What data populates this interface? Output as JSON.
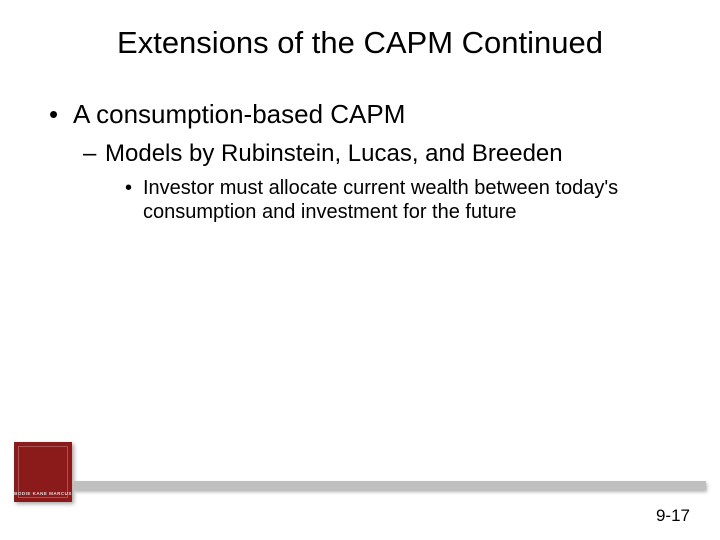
{
  "title": "Extensions of the CAPM Continued",
  "bullets": {
    "l1": "A consumption-based CAPM",
    "l2": "Models by Rubinstein, Lucas, and Breeden",
    "l3": "Investor must allocate current wealth between today's consumption and investment for the future"
  },
  "footer": {
    "page_number": "9-17",
    "logo_text": "BODIE  KANE  MARCUS",
    "red_block_color": "#8b1a1a",
    "gray_bar_color": "#bfbfbf"
  },
  "styling": {
    "background_color": "#ffffff",
    "text_color": "#000000",
    "title_fontsize": 31,
    "l1_fontsize": 26,
    "l2_fontsize": 24,
    "l3_fontsize": 20,
    "font_family": "Arial"
  }
}
